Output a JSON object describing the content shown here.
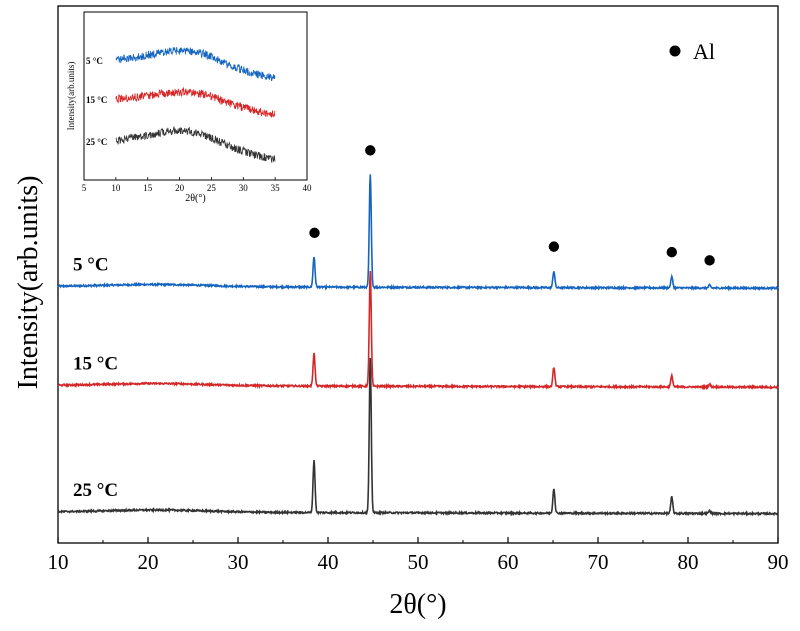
{
  "chart_data": [
    {
      "type": "line",
      "xlabel": "2θ(°)",
      "ylabel": "Intensity(arb.units)",
      "xlim": [
        10,
        90
      ],
      "xticks": [
        "10",
        "20",
        "30",
        "40",
        "50",
        "60",
        "70",
        "80",
        "90"
      ],
      "legend": {
        "marker": "●",
        "label": "Al",
        "position": "top-right"
      },
      "peak_markers": [
        38.5,
        44.7,
        65.1,
        78.2,
        82.4
      ],
      "series": [
        {
          "name": "5 °C",
          "color": "#1565c0",
          "baseline": 0.82,
          "peaks": [
            [
              38.45,
              0.11
            ],
            [
              44.7,
              0.41
            ],
            [
              65.1,
              0.06
            ],
            [
              78.2,
              0.04
            ],
            [
              82.4,
              0.01
            ]
          ]
        },
        {
          "name": "15 °C",
          "color": "#d62728",
          "baseline": 0.46,
          "peaks": [
            [
              38.45,
              0.12
            ],
            [
              44.7,
              0.42
            ],
            [
              65.1,
              0.07
            ],
            [
              78.2,
              0.04
            ],
            [
              82.4,
              0.01
            ]
          ]
        },
        {
          "name": "25 °C",
          "color": "#333333",
          "baseline": 0.0,
          "peaks": [
            [
              38.45,
              0.19
            ],
            [
              44.7,
              0.56
            ],
            [
              65.1,
              0.09
            ],
            [
              78.2,
              0.06
            ],
            [
              82.4,
              0.01
            ]
          ]
        }
      ]
    },
    {
      "type": "line",
      "role": "inset",
      "xlabel": "2θ(°)",
      "ylabel": "Intensity(arb.units)",
      "xlim": [
        5,
        40
      ],
      "xticks": [
        "5",
        "10",
        "15",
        "20",
        "25",
        "30",
        "35",
        "40"
      ],
      "series": [
        {
          "name": "5 °C",
          "color": "#1565c0",
          "points": [
            [
              10,
              0.0
            ],
            [
              14,
              0.03
            ],
            [
              18,
              0.07
            ],
            [
              21,
              0.08
            ],
            [
              24,
              0.05
            ],
            [
              28,
              -0.05
            ],
            [
              32,
              -0.12
            ],
            [
              35,
              -0.15
            ]
          ]
        },
        {
          "name": "15 °C",
          "color": "#d62728",
          "points": [
            [
              10,
              0.0
            ],
            [
              14,
              0.02
            ],
            [
              18,
              0.05
            ],
            [
              21,
              0.06
            ],
            [
              24,
              0.04
            ],
            [
              28,
              -0.04
            ],
            [
              32,
              -0.1
            ],
            [
              35,
              -0.13
            ]
          ]
        },
        {
          "name": "25 °C",
          "color": "#333333",
          "points": [
            [
              10,
              0.0
            ],
            [
              14,
              0.04
            ],
            [
              18,
              0.08
            ],
            [
              21,
              0.09
            ],
            [
              24,
              0.05
            ],
            [
              28,
              -0.05
            ],
            [
              32,
              -0.12
            ],
            [
              35,
              -0.15
            ]
          ]
        }
      ]
    }
  ]
}
